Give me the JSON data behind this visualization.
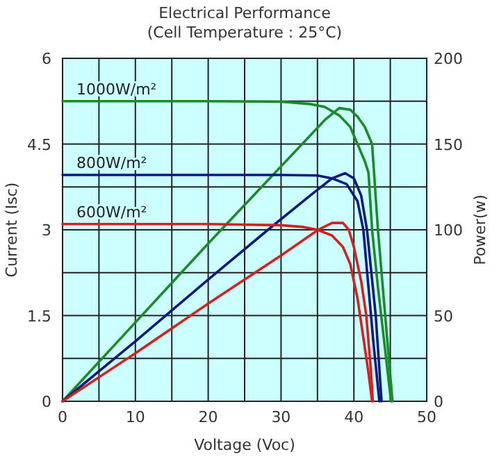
{
  "chart_data": {
    "type": "line",
    "title": "Electrical Performance",
    "subtitle": "(Cell Temperature : 25°C)",
    "xlabel": "Voltage (Voc)",
    "ylabel": "Current (Isc)",
    "y2label": "Power(w)",
    "xlim": [
      0,
      50
    ],
    "ylim": [
      0,
      6
    ],
    "y2lim": [
      0,
      200
    ],
    "xticks": [
      0,
      {
        "value": 5,
        "label": null
      },
      10,
      {
        "value": 15,
        "label": null
      },
      20,
      {
        "value": 25,
        "label": null
      },
      30,
      {
        "value": 35,
        "label": null
      },
      40,
      {
        "value": 45,
        "label": null
      },
      50
    ],
    "yticks": [
      0,
      {
        "value": 0.75,
        "label": null
      },
      1.5,
      {
        "value": 2.25,
        "label": null
      },
      3,
      {
        "value": 3.75,
        "label": null
      },
      4.5,
      {
        "value": 5.25,
        "label": null
      },
      6
    ],
    "y2ticks": [
      0,
      50,
      100,
      150,
      200
    ],
    "grid": true,
    "marker": "none",
    "line_style": "solid",
    "series": [
      {
        "name": "1000W/m²",
        "color": "#1a8a2a",
        "x": [
          0,
          10,
          20,
          30,
          34,
          36,
          38,
          39.5,
          40.5,
          41.5,
          42,
          42.5,
          43.3,
          44.2,
          45.1
        ],
        "values": [
          5.25,
          5.25,
          5.25,
          5.24,
          5.2,
          5.15,
          5.0,
          4.8,
          4.5,
          4.2,
          4,
          3,
          2,
          1,
          0
        ]
      },
      {
        "color": "#1a8a2a",
        "axis": "y2",
        "x": [
          0,
          10,
          20,
          30,
          34,
          36,
          38,
          39.5,
          40.5,
          41.5,
          42.5,
          43.3,
          44.3,
          45.3
        ],
        "values": [
          0,
          46,
          92,
          137,
          155,
          164,
          171,
          170,
          166,
          160,
          150,
          100,
          50,
          0
        ]
      },
      {
        "name": "800W/m²",
        "color": "#0a1a80",
        "x": [
          0,
          20,
          30,
          35,
          37,
          39,
          40.5,
          41.3,
          42,
          42.7,
          43.5
        ],
        "values": [
          3.96,
          3.96,
          3.96,
          3.95,
          3.9,
          3.8,
          3.5,
          3,
          2,
          1,
          0
        ]
      },
      {
        "color": "#0a1a80",
        "axis": "y2",
        "x": [
          0,
          10,
          20,
          28.2,
          34,
          37,
          38.8,
          40,
          41,
          41.8,
          42.4,
          43,
          43.8
        ],
        "values": [
          0,
          35,
          71,
          100,
          120,
          130,
          133,
          130,
          120,
          100,
          75,
          50,
          0
        ]
      },
      {
        "name": "600W/m²",
        "color": "#d42020",
        "x": [
          0,
          20,
          30,
          33,
          35,
          37,
          38.5,
          39.5,
          40.5,
          41.2,
          42,
          42.5
        ],
        "values": [
          3.1,
          3.1,
          3.08,
          3.05,
          3.0,
          2.9,
          2.7,
          2.4,
          1.8,
          1.2,
          0.5,
          0
        ]
      },
      {
        "color": "#d42020",
        "axis": "y2",
        "x": [
          0,
          10,
          20,
          30,
          35.1,
          37,
          38.5,
          39.3,
          40,
          41,
          41.7,
          42.3,
          42.6
        ],
        "values": [
          0,
          28,
          57,
          85,
          100,
          104,
          104,
          100,
          90,
          70,
          50,
          20,
          0
        ]
      }
    ]
  }
}
